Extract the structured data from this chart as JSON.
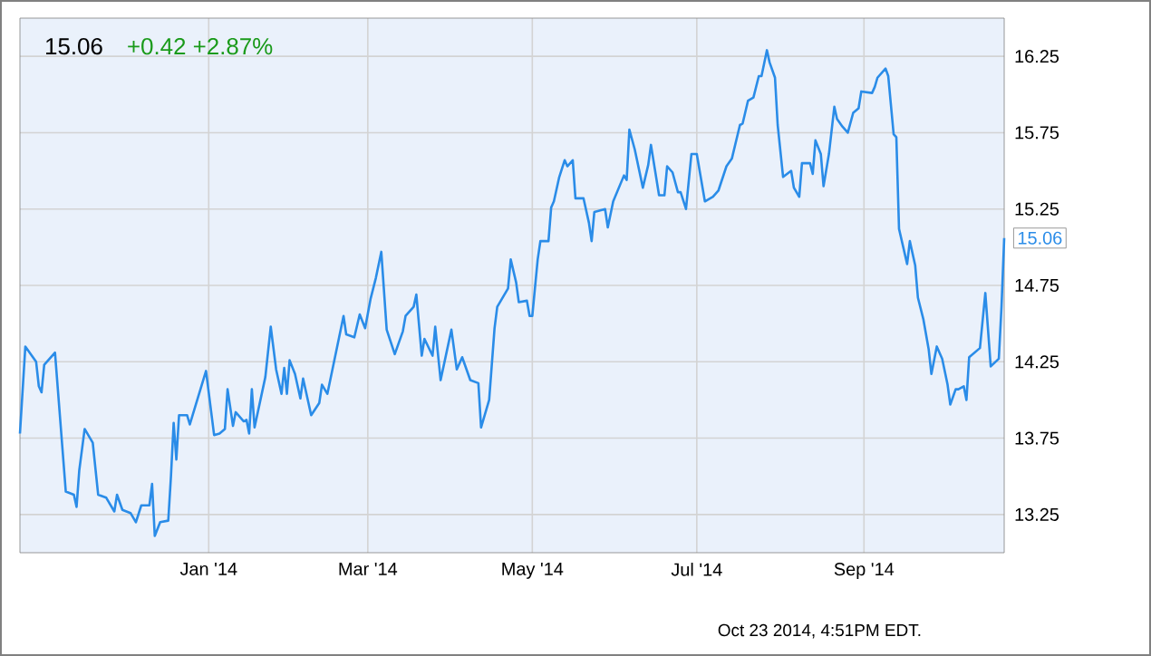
{
  "chart_data": {
    "type": "line",
    "title": "15.06",
    "subtitle": "+0.42  +2.87%",
    "x": [
      "2013-10-23",
      "2013-10-25",
      "2013-10-29",
      "2013-10-30",
      "2013-10-31",
      "2013-11-01",
      "2013-11-05",
      "2013-11-09",
      "2013-11-12",
      "2013-11-13",
      "2013-11-14",
      "2013-11-16",
      "2013-11-19",
      "2013-11-21",
      "2013-11-24",
      "2013-11-27",
      "2013-11-28",
      "2013-11-30",
      "2013-12-03",
      "2013-12-05",
      "2013-12-07",
      "2013-12-10",
      "2013-12-11",
      "2013-12-12",
      "2013-12-14",
      "2013-12-17",
      "2013-12-18",
      "2013-12-19",
      "2013-12-20",
      "2013-12-21",
      "2013-12-24",
      "2013-12-25",
      "2013-12-31",
      "2014-01-03",
      "2014-01-05",
      "2014-01-07",
      "2014-01-08",
      "2014-01-10",
      "2014-01-11",
      "2014-01-14",
      "2014-01-15",
      "2014-01-16",
      "2014-01-17",
      "2014-01-18",
      "2014-01-22",
      "2014-01-24",
      "2014-01-26",
      "2014-01-28",
      "2014-01-29",
      "2014-01-30",
      "2014-01-31",
      "2014-02-02",
      "2014-02-04",
      "2014-02-05",
      "2014-02-08",
      "2014-02-11",
      "2014-02-12",
      "2014-02-14",
      "2014-02-20",
      "2014-02-21",
      "2014-02-24",
      "2014-02-26",
      "2014-02-28",
      "2014-03-02",
      "2014-03-04",
      "2014-03-06",
      "2014-03-08",
      "2014-03-11",
      "2014-03-14",
      "2014-03-15",
      "2014-03-18",
      "2014-03-19",
      "2014-03-21",
      "2014-03-22",
      "2014-03-25",
      "2014-03-26",
      "2014-03-28",
      "2014-04-01",
      "2014-04-03",
      "2014-04-05",
      "2014-04-08",
      "2014-04-11",
      "2014-04-12",
      "2014-04-15",
      "2014-04-17",
      "2014-04-18",
      "2014-04-22",
      "2014-04-23",
      "2014-04-25",
      "2014-04-26",
      "2014-04-29",
      "2014-04-30",
      "2014-05-01",
      "2014-05-03",
      "2014-05-04",
      "2014-05-07",
      "2014-05-08",
      "2014-05-09",
      "2014-05-11",
      "2014-05-13",
      "2014-05-14",
      "2014-05-16",
      "2014-05-17",
      "2014-05-20",
      "2014-05-22",
      "2014-05-23",
      "2014-05-24",
      "2014-05-28",
      "2014-05-29",
      "2014-05-31",
      "2014-06-04",
      "2014-06-05",
      "2014-06-06",
      "2014-06-08",
      "2014-06-11",
      "2014-06-13",
      "2014-06-14",
      "2014-06-17",
      "2014-06-19",
      "2014-06-20",
      "2014-06-22",
      "2014-06-24",
      "2014-06-25",
      "2014-06-27",
      "2014-06-29",
      "2014-07-01",
      "2014-07-04",
      "2014-07-07",
      "2014-07-09",
      "2014-07-12",
      "2014-07-14",
      "2014-07-17",
      "2014-07-18",
      "2014-07-20",
      "2014-07-22",
      "2014-07-24",
      "2014-07-25",
      "2014-07-27",
      "2014-07-28",
      "2014-07-30",
      "2014-07-31",
      "2014-08-02",
      "2014-08-05",
      "2014-08-06",
      "2014-08-08",
      "2014-08-09",
      "2014-08-12",
      "2014-08-13",
      "2014-08-14",
      "2014-08-16",
      "2014-08-17",
      "2014-08-19",
      "2014-08-21",
      "2014-08-22",
      "2014-08-24",
      "2014-08-26",
      "2014-08-28",
      "2014-08-30",
      "2014-08-31",
      "2014-09-04",
      "2014-09-05",
      "2014-09-06",
      "2014-09-09",
      "2014-09-10",
      "2014-09-12",
      "2014-09-13",
      "2014-09-14",
      "2014-09-17",
      "2014-09-18",
      "2014-09-20",
      "2014-09-21",
      "2014-09-23",
      "2014-09-25",
      "2014-09-26",
      "2014-09-28",
      "2014-09-30",
      "2014-10-02",
      "2014-10-03",
      "2014-10-05",
      "2014-10-06",
      "2014-10-08",
      "2014-10-09",
      "2014-10-10",
      "2014-10-14",
      "2014-10-16",
      "2014-10-18",
      "2014-10-21",
      "2014-10-22",
      "2014-10-23"
    ],
    "series": [
      {
        "color": "#2a8ce8",
        "values": [
          13.78,
          14.35,
          14.25,
          14.09,
          14.05,
          14.23,
          14.31,
          13.4,
          13.38,
          13.3,
          13.54,
          13.81,
          13.72,
          13.38,
          13.36,
          13.27,
          13.38,
          13.28,
          13.26,
          13.2,
          13.31,
          13.31,
          13.45,
          13.11,
          13.2,
          13.21,
          13.5,
          13.85,
          13.61,
          13.9,
          13.9,
          13.84,
          14.19,
          13.77,
          13.78,
          13.81,
          14.07,
          13.83,
          13.92,
          13.86,
          13.87,
          13.78,
          14.07,
          13.82,
          14.15,
          14.48,
          14.2,
          14.04,
          14.21,
          14.04,
          14.26,
          14.17,
          14.01,
          14.14,
          13.9,
          13.98,
          14.1,
          14.04,
          14.55,
          14.43,
          14.41,
          14.56,
          14.47,
          14.66,
          14.8,
          14.97,
          14.46,
          14.3,
          14.45,
          14.55,
          14.61,
          14.69,
          14.29,
          14.4,
          14.29,
          14.48,
          14.13,
          14.46,
          14.2,
          14.28,
          14.13,
          14.11,
          13.82,
          14.0,
          14.47,
          14.61,
          14.73,
          14.92,
          14.77,
          14.64,
          14.65,
          14.55,
          14.55,
          14.92,
          15.04,
          15.04,
          15.26,
          15.3,
          15.46,
          15.57,
          15.53,
          15.57,
          15.32,
          15.32,
          15.16,
          15.04,
          15.23,
          15.25,
          15.13,
          15.3,
          15.47,
          15.44,
          15.77,
          15.64,
          15.39,
          15.54,
          15.67,
          15.34,
          15.34,
          15.53,
          15.49,
          15.36,
          15.36,
          15.25,
          15.61,
          15.61,
          15.3,
          15.33,
          15.37,
          15.53,
          15.58,
          15.8,
          15.81,
          15.96,
          15.98,
          16.12,
          16.12,
          16.29,
          16.21,
          16.11,
          15.8,
          15.46,
          15.5,
          15.39,
          15.33,
          15.55,
          15.55,
          15.48,
          15.7,
          15.61,
          15.4,
          15.61,
          15.92,
          15.84,
          15.79,
          15.75,
          15.88,
          15.91,
          16.02,
          16.01,
          16.05,
          16.11,
          16.17,
          16.12,
          15.74,
          15.72,
          15.12,
          14.89,
          15.04,
          14.88,
          14.67,
          14.53,
          14.33,
          14.17,
          14.35,
          14.27,
          14.1,
          13.97,
          14.07,
          14.07,
          14.09,
          14.0,
          14.28,
          14.34,
          14.7,
          14.22,
          14.27,
          14.61,
          15.06
        ]
      }
    ],
    "xlim": [
      "2013-10-23",
      "2014-10-23"
    ],
    "xticks": [
      {
        "value": "2014-01-01",
        "label": "Jan '14"
      },
      {
        "value": "2014-03-01",
        "label": "Mar '14"
      },
      {
        "value": "2014-05-01",
        "label": "May '14"
      },
      {
        "value": "2014-07-01",
        "label": "Jul '14"
      },
      {
        "value": "2014-09-01",
        "label": "Sep '14"
      }
    ],
    "ylim": [
      13.0,
      16.5
    ],
    "yticks": [
      13.25,
      13.75,
      14.25,
      14.75,
      15.25,
      15.75,
      16.25
    ],
    "grid": true,
    "marker": "none",
    "line_style": "solid",
    "annotations": [
      {
        "text": "15.06",
        "x": "2014-10-23",
        "y": 15.06
      },
      "Oct 23 2014, 4:51PM EDT."
    ]
  }
}
